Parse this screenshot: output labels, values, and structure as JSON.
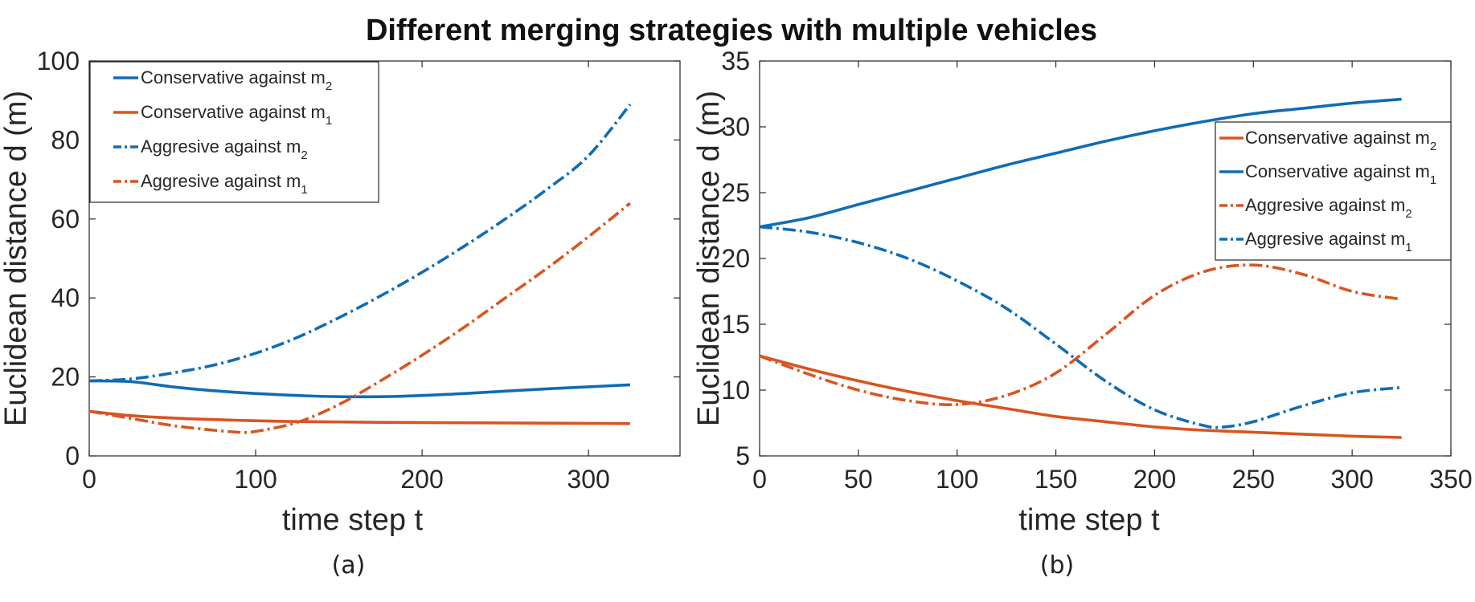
{
  "figure_title": "Different merging strategies with multiple vehicles",
  "colors": {
    "blue": "#0f6cb6",
    "orange": "#d9541f"
  },
  "chart_data": [
    {
      "type": "line",
      "panel_label": "(a)",
      "xlabel": "time step t",
      "ylabel": "Euclidean distance  d  (m)",
      "xlim": [
        0,
        355
      ],
      "ylim": [
        0,
        100
      ],
      "xticks": [
        0,
        100,
        200,
        300
      ],
      "yticks": [
        0,
        20,
        40,
        60,
        80,
        100
      ],
      "legend_position": "top-left",
      "series": [
        {
          "name": "Conservative against m",
          "sub": "2",
          "color": "#0f6cb6",
          "style": "solid",
          "x": [
            0,
            25,
            50,
            75,
            100,
            125,
            150,
            175,
            200,
            225,
            250,
            275,
            300,
            325
          ],
          "y": [
            19,
            18.8,
            17.5,
            16.5,
            15.8,
            15.3,
            15.0,
            15.0,
            15.3,
            15.8,
            16.4,
            17.0,
            17.5,
            18
          ]
        },
        {
          "name": "Conservative against m",
          "sub": "1",
          "color": "#d9541f",
          "style": "solid",
          "x": [
            0,
            25,
            50,
            75,
            100,
            125,
            150,
            175,
            200,
            225,
            250,
            275,
            300,
            325
          ],
          "y": [
            11.3,
            10.2,
            9.6,
            9.2,
            8.9,
            8.7,
            8.6,
            8.5,
            8.45,
            8.4,
            8.35,
            8.3,
            8.25,
            8.2
          ]
        },
        {
          "name": "Aggresive against m",
          "sub": "2",
          "color": "#0f6cb6",
          "style": "dashdot",
          "x": [
            0,
            25,
            50,
            75,
            100,
            125,
            150,
            175,
            200,
            225,
            250,
            275,
            300,
            325
          ],
          "y": [
            19,
            19.5,
            21,
            23,
            26,
            30,
            35,
            40.5,
            46.5,
            53,
            60,
            67.5,
            76,
            89
          ]
        },
        {
          "name": "Aggresive against m",
          "sub": "1",
          "color": "#d9541f",
          "style": "dashdot",
          "x": [
            0,
            25,
            50,
            75,
            90,
            100,
            125,
            150,
            175,
            200,
            225,
            250,
            275,
            300,
            325
          ],
          "y": [
            11.3,
            9.5,
            7.7,
            6.5,
            6.0,
            6.2,
            8.5,
            13,
            19,
            25.5,
            32.5,
            40,
            47.5,
            55.5,
            64
          ]
        }
      ]
    },
    {
      "type": "line",
      "panel_label": "(b)",
      "xlabel": "time step t",
      "ylabel": "Euclidean distance d (m)",
      "xlim": [
        0,
        350
      ],
      "ylim": [
        5,
        35
      ],
      "xticks": [
        0,
        50,
        100,
        150,
        200,
        250,
        300,
        350
      ],
      "yticks": [
        5,
        10,
        15,
        20,
        25,
        30,
        35
      ],
      "legend_position": "top-right",
      "series": [
        {
          "name": "Conservative against m",
          "sub": "2",
          "color": "#d9541f",
          "style": "solid",
          "x": [
            0,
            25,
            50,
            75,
            100,
            125,
            150,
            175,
            200,
            225,
            250,
            275,
            300,
            325
          ],
          "y": [
            12.6,
            11.6,
            10.7,
            9.9,
            9.2,
            8.6,
            8.0,
            7.6,
            7.2,
            6.95,
            6.8,
            6.65,
            6.5,
            6.4
          ]
        },
        {
          "name": "Conservative against m",
          "sub": "1",
          "color": "#0f6cb6",
          "style": "solid",
          "x": [
            0,
            25,
            50,
            75,
            100,
            125,
            150,
            175,
            200,
            225,
            250,
            275,
            300,
            325
          ],
          "y": [
            22.4,
            23.1,
            24.1,
            25.1,
            26.1,
            27.1,
            28.0,
            28.9,
            29.7,
            30.4,
            31.0,
            31.4,
            31.8,
            32.1
          ]
        },
        {
          "name": "Aggresive against m",
          "sub": "2",
          "color": "#d9541f",
          "style": "dashdot",
          "x": [
            0,
            25,
            50,
            75,
            100,
            125,
            150,
            175,
            200,
            225,
            250,
            275,
            300,
            325
          ],
          "y": [
            12.6,
            11.2,
            10.0,
            9.2,
            8.9,
            9.6,
            11.3,
            14.2,
            17.2,
            19.0,
            19.5,
            18.8,
            17.5,
            16.9
          ]
        },
        {
          "name": "Aggresive against m",
          "sub": "1",
          "color": "#0f6cb6",
          "style": "dashdot",
          "x": [
            0,
            25,
            50,
            75,
            100,
            125,
            150,
            175,
            200,
            225,
            235,
            250,
            275,
            300,
            325
          ],
          "y": [
            22.4,
            22.0,
            21.2,
            20.0,
            18.3,
            16.2,
            13.5,
            10.7,
            8.5,
            7.3,
            7.2,
            7.6,
            8.8,
            9.8,
            10.2
          ]
        }
      ]
    }
  ]
}
